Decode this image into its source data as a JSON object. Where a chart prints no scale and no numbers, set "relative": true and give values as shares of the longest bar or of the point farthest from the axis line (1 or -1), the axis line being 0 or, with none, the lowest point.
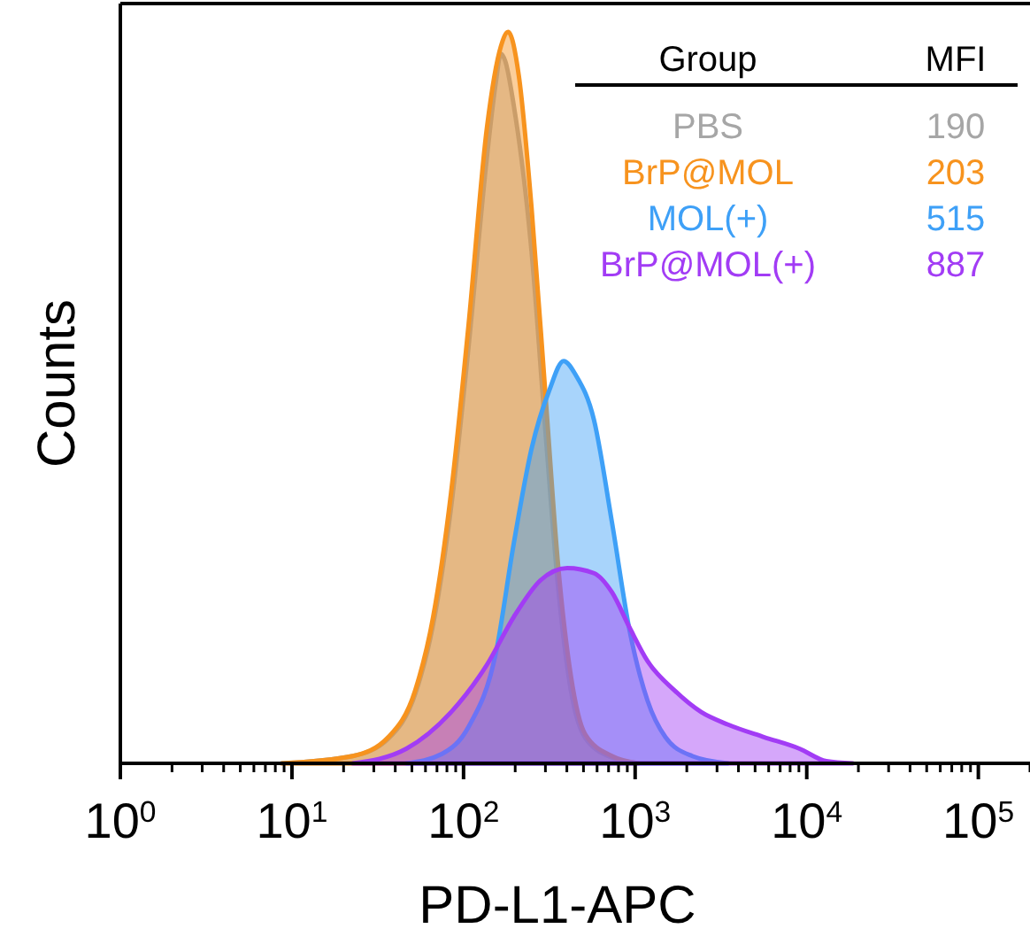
{
  "chart_data": {
    "type": "area",
    "relative": true,
    "xlabel": "PD-L1-APC",
    "ylabel": "Counts",
    "log": "x",
    "legend": "top right",
    "legend_title": "Group",
    "annotations": [
      "MFI",
      "190",
      "203",
      "515",
      "887"
    ],
    "xlim": [
      1,
      200000
    ],
    "xticks": [
      {
        "value": 1,
        "label": "10$^{0}$"
      },
      {
        "value": 2,
        "label": null
      },
      {
        "value": 3,
        "label": null
      },
      {
        "value": 4,
        "label": null
      },
      {
        "value": 5,
        "label": null
      },
      {
        "value": 6,
        "label": null
      },
      {
        "value": 7,
        "label": null
      },
      {
        "value": 8,
        "label": null
      },
      {
        "value": 9,
        "label": null
      },
      {
        "value": 10,
        "label": "10$^{1}$"
      },
      {
        "value": 20,
        "label": null
      },
      {
        "value": 30,
        "label": null
      },
      {
        "value": 40,
        "label": null
      },
      {
        "value": 50,
        "label": null
      },
      {
        "value": 60,
        "label": null
      },
      {
        "value": 70,
        "label": null
      },
      {
        "value": 80,
        "label": null
      },
      {
        "value": 90,
        "label": null
      },
      {
        "value": 100,
        "label": "10$^{2}$"
      },
      {
        "value": 200,
        "label": null
      },
      {
        "value": 300,
        "label": null
      },
      {
        "value": 400,
        "label": null
      },
      {
        "value": 500,
        "label": null
      },
      {
        "value": 600,
        "label": null
      },
      {
        "value": 700,
        "label": null
      },
      {
        "value": 800,
        "label": null
      },
      {
        "value": 900,
        "label": null
      },
      {
        "value": 1000,
        "label": "10$^{3}$"
      },
      {
        "value": 2000,
        "label": null
      },
      {
        "value": 3000,
        "label": null
      },
      {
        "value": 4000,
        "label": null
      },
      {
        "value": 5000,
        "label": null
      },
      {
        "value": 6000,
        "label": null
      },
      {
        "value": 7000,
        "label": null
      },
      {
        "value": 8000,
        "label": null
      },
      {
        "value": 9000,
        "label": null
      },
      {
        "value": 10000,
        "label": "10$^{4}$"
      },
      {
        "value": 20000,
        "label": null
      },
      {
        "value": 30000,
        "label": null
      },
      {
        "value": 40000,
        "label": null
      },
      {
        "value": 50000,
        "label": null
      },
      {
        "value": 60000,
        "label": null
      },
      {
        "value": 70000,
        "label": null
      },
      {
        "value": 80000,
        "label": null
      },
      {
        "value": 90000,
        "label": null
      },
      {
        "value": 100000,
        "label": "10$^{5}$"
      },
      {
        "value": 200000,
        "label": null
      }
    ],
    "series": [
      {
        "name": "PBS",
        "color": "#a6a6a6",
        "x": [
          8.7,
          22.6,
          36.5,
          52.3,
          66.5,
          84.6,
          107,
          137,
          154,
          165,
          175,
          196,
          249,
          301,
          356,
          422,
          511,
          732,
          1050
        ],
        "values": [
          0,
          0.01,
          0.034,
          0.095,
          0.19,
          0.35,
          0.57,
          0.83,
          0.93,
          0.97,
          0.96,
          0.9,
          0.7,
          0.45,
          0.24,
          0.1,
          0.035,
          0.008,
          0
        ]
      },
      {
        "name": "BrP@MOL",
        "color": "#f7931e",
        "x": [
          8.7,
          22.6,
          36.5,
          52.3,
          66.5,
          84.6,
          107,
          137,
          165,
          182,
          210,
          249,
          301,
          356,
          422,
          511,
          732,
          1050
        ],
        "values": [
          0,
          0.01,
          0.036,
          0.1,
          0.2,
          0.37,
          0.6,
          0.87,
          0.98,
          1,
          0.94,
          0.76,
          0.5,
          0.27,
          0.12,
          0.04,
          0.01,
          0
        ]
      },
      {
        "name": "MOL(+)",
        "color": "#3ea0f7",
        "x": [
          46.4,
          75,
          107,
          154,
          196,
          249,
          316,
          383,
          453,
          575,
          732,
          931,
          1180,
          1500,
          2150,
          3480
        ],
        "values": [
          0,
          0.013,
          0.05,
          0.15,
          0.3,
          0.43,
          0.51,
          0.55,
          0.53,
          0.47,
          0.33,
          0.18,
          0.086,
          0.036,
          0.01,
          0
        ]
      },
      {
        "name": "BrP@MOL(+)",
        "color": "#a23cf5",
        "x": [
          22.6,
          46.4,
          84.6,
          137,
          196,
          280,
          402,
          575,
          732,
          931,
          1180,
          1690,
          2430,
          3480,
          5620,
          9080,
          13000,
          18600
        ],
        "values": [
          0,
          0.02,
          0.07,
          0.135,
          0.2,
          0.25,
          0.267,
          0.26,
          0.234,
          0.185,
          0.14,
          0.1,
          0.07,
          0.053,
          0.036,
          0.02,
          0.003,
          0
        ]
      }
    ]
  }
}
